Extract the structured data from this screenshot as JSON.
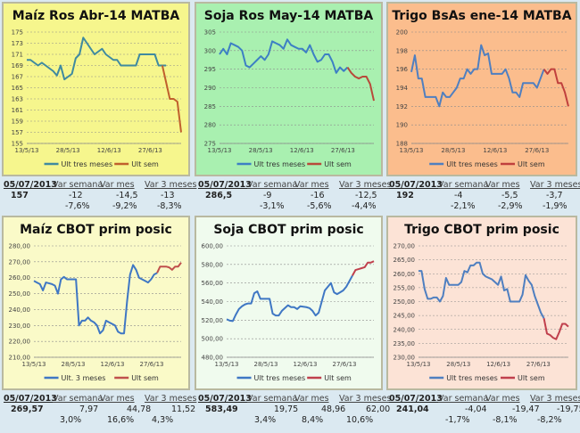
{
  "colors": {
    "page_bg": "#dbe9f1",
    "series_main": "#4a7fb5",
    "series_week": "#c0504d",
    "grid": "#9a9a9a"
  },
  "chart_data": [
    {
      "id": "maiz-ros",
      "type": "line",
      "title": "Maíz Ros Abr-14 MATBA",
      "bg": "#f6f68d",
      "main_color": "#3f8aa0",
      "week_color": "#c0602d",
      "ylim": [
        155,
        175
      ],
      "yticks": [
        155,
        157,
        159,
        161,
        163,
        165,
        167,
        169,
        171,
        173,
        175
      ],
      "ytick_labels": [
        "155",
        "157",
        "159",
        "161",
        "163",
        "165",
        "167",
        "169",
        "171",
        "173",
        "175"
      ],
      "xtick_labels": [
        "13/5/13",
        "28/5/13",
        "12/6/13",
        "27/6/13"
      ],
      "xtick_index": [
        0,
        11,
        22,
        33
      ],
      "n": 40,
      "legend": [
        "Ult tres meses",
        "Ult sem"
      ],
      "series_main": [
        170,
        170,
        169.5,
        169,
        169.5,
        169,
        168.5,
        168,
        167.2,
        169,
        166.5,
        167,
        167.5,
        170.3,
        171,
        174,
        173,
        172,
        171,
        171.5,
        172,
        171,
        170.5,
        170,
        170,
        169,
        169,
        169,
        169,
        169,
        171,
        171,
        171,
        171,
        171,
        169,
        169,
        169
      ],
      "series_week": [
        169,
        166,
        163,
        163,
        162.5,
        157
      ],
      "week_start": 36,
      "grid": true,
      "legend_position": "bottom"
    },
    {
      "id": "soja-ros",
      "type": "line",
      "title": "Soja Ros May-14 MATBA",
      "bg": "#a9f0b0",
      "main_color": "#3d7fc4",
      "week_color": "#b84a3a",
      "ylim": [
        275,
        305
      ],
      "yticks": [
        275,
        280,
        285,
        290,
        295,
        300,
        305
      ],
      "ytick_labels": [
        "275",
        "280",
        "285",
        "290",
        "295",
        "300",
        "305"
      ],
      "xtick_labels": [
        "13/5/13",
        "28/5/13",
        "12/6/13",
        "27/6/13"
      ],
      "xtick_index": [
        0,
        11,
        22,
        33
      ],
      "n": 40,
      "legend": [
        "Ult tres meses",
        "Ult sem"
      ],
      "series_main": [
        299,
        300.5,
        299,
        302,
        301.5,
        301,
        300,
        296,
        295.5,
        296.5,
        297.5,
        298.5,
        297.5,
        299,
        302.5,
        302,
        301.5,
        300.5,
        303,
        301.5,
        301,
        300.5,
        300.5,
        299.5,
        301.5,
        299,
        297,
        297.5,
        299,
        299,
        297,
        294,
        295.5,
        294.5,
        295.5
      ],
      "series_week": [
        295.5,
        294,
        293,
        292.5,
        293,
        293,
        291,
        286.5
      ],
      "week_start": 34,
      "grid": true,
      "legend_position": "bottom"
    },
    {
      "id": "trigo-bsas",
      "type": "line",
      "title": "Trigo BsAs ene-14 MATBA",
      "bg": "#fbbd8d",
      "main_color": "#4f7fc0",
      "week_color": "#c0403d",
      "ylim": [
        188,
        200
      ],
      "yticks": [
        188,
        190,
        192,
        194,
        196,
        198,
        200
      ],
      "ytick_labels": [
        "188",
        "190",
        "192",
        "194",
        "196",
        "198",
        "200"
      ],
      "xtick_labels": [
        "13/5/13",
        "28/5/13",
        "12/6/13",
        "27/6/13"
      ],
      "xtick_index": [
        0,
        11,
        22,
        33
      ],
      "n": 40,
      "legend": [
        "Ult tres meses",
        "Ult sem"
      ],
      "series_main": [
        195.7,
        197.5,
        195,
        195,
        193,
        193,
        193,
        193,
        192,
        193.5,
        193,
        193,
        193.5,
        194,
        195,
        195,
        196,
        195.5,
        196,
        196,
        198.6,
        197.5,
        197.7,
        195.5,
        195.5,
        195.5,
        195.5,
        196,
        195,
        193.5,
        193.5,
        193,
        194.5,
        194.5,
        194.5,
        194.5,
        194,
        195,
        196
      ],
      "series_week": [
        196,
        195.5,
        196,
        196,
        194.5,
        194.5,
        193.5,
        192
      ],
      "week_start": 38,
      "grid": true,
      "legend_position": "bottom"
    },
    {
      "id": "maiz-cbot",
      "type": "line",
      "title": "Maíz CBOT prim posic",
      "bg": "#fafac8",
      "main_color": "#3f77c4",
      "week_color": "#c0504d",
      "ylim": [
        210,
        280
      ],
      "yticks": [
        210,
        220,
        230,
        240,
        250,
        260,
        270,
        280
      ],
      "ytick_labels": [
        "210,00",
        "220,00",
        "230,00",
        "240,00",
        "250,00",
        "260,00",
        "270,00",
        "280,00"
      ],
      "xtick_labels": [
        "13/5/13",
        "28/5/13",
        "12/6/13",
        "27/6/13"
      ],
      "xtick_index": [
        0,
        11,
        22,
        33
      ],
      "n": 40,
      "legend": [
        "Ult. 3 meses",
        "Ult sem"
      ],
      "series_main": [
        258,
        257,
        256,
        252,
        257,
        256.5,
        256,
        255,
        250,
        259,
        260.5,
        259,
        259,
        259,
        259,
        230,
        233,
        233,
        235,
        233,
        232,
        230,
        225,
        227,
        233,
        232,
        231,
        230,
        226,
        225,
        225,
        245,
        262,
        268,
        265,
        260,
        259,
        258,
        257,
        259,
        262,
        263
      ],
      "series_week": [
        263,
        267,
        267,
        267,
        266.5,
        265,
        267,
        267,
        269.5
      ],
      "week_start": 41,
      "grid": true,
      "legend_position": "bottom"
    },
    {
      "id": "soja-cbot",
      "type": "line",
      "title": "Soja CBOT prim posic",
      "bg": "#f0fbee",
      "main_color": "#3f77c4",
      "week_color": "#c0404d",
      "ylim": [
        480,
        600
      ],
      "yticks": [
        480,
        500,
        520,
        540,
        560,
        580,
        600
      ],
      "ytick_labels": [
        "480,00",
        "500,00",
        "520,00",
        "540,00",
        "560,00",
        "580,00",
        "600,00"
      ],
      "xtick_labels": [
        "13/5/13",
        "28/5/13",
        "12/6/13",
        "27/6/13"
      ],
      "xtick_index": [
        0,
        11,
        22,
        33
      ],
      "n": 40,
      "legend": [
        "Ult tres meses",
        "Ult sem"
      ],
      "series_main": [
        521,
        519.5,
        519,
        526,
        532,
        535,
        537,
        538,
        538,
        549,
        551,
        543,
        543,
        543,
        543,
        527,
        525,
        525,
        530,
        533,
        536,
        534,
        534,
        532,
        535,
        534.5,
        534,
        533,
        530,
        525,
        528,
        540,
        552,
        556,
        560,
        550,
        548,
        550,
        552,
        556,
        562,
        568
      ],
      "series_week": [
        568,
        574,
        575,
        576,
        577,
        582,
        582,
        583.5
      ],
      "week_start": 41,
      "grid": true,
      "legend_position": "bottom"
    },
    {
      "id": "trigo-cbot",
      "type": "line",
      "title": "Trigo CBOT prim posic",
      "bg": "#fce3d6",
      "main_color": "#4f7fc0",
      "week_color": "#c0404d",
      "ylim": [
        230,
        270
      ],
      "yticks": [
        230,
        235,
        240,
        245,
        250,
        255,
        260,
        265,
        270
      ],
      "ytick_labels": [
        "230,00",
        "235,00",
        "240,00",
        "245,00",
        "250,00",
        "255,00",
        "260,00",
        "265,00",
        "270,00"
      ],
      "xtick_labels": [
        "13/5/13",
        "28/5/13",
        "12/6/13",
        "27/6/13"
      ],
      "xtick_index": [
        0,
        11,
        22,
        33
      ],
      "n": 40,
      "legend": [
        "Ult tres meses",
        "Ult sem"
      ],
      "series_main": [
        261,
        261,
        254.5,
        251,
        251,
        251.5,
        251.5,
        250,
        252,
        258.5,
        256,
        256,
        256,
        256,
        257,
        261,
        260.5,
        263,
        263,
        264,
        264,
        260,
        259,
        258.5,
        258,
        257,
        256,
        259,
        254,
        254.5,
        250,
        250,
        250,
        250,
        252.5,
        259.5,
        257.5,
        256,
        252,
        249,
        246,
        244
      ],
      "series_week": [
        244,
        238.5,
        238,
        237,
        236.5,
        239,
        242,
        242,
        241
      ],
      "week_start": 41,
      "grid": true,
      "legend_position": "bottom"
    }
  ],
  "stats": [
    {
      "date": "05/07/2013",
      "headers": [
        "Var semana",
        "Var mes",
        "Var 3 meses"
      ],
      "value": "157",
      "abs": [
        "-12",
        "-14,5",
        "-13"
      ],
      "pct": [
        "-7,6%",
        "-9,2%",
        "-8,3%"
      ]
    },
    {
      "date": "05/07/2013",
      "headers": [
        "Var semana",
        "Var mes",
        "Var 3 meses"
      ],
      "value": "286,5",
      "abs": [
        "-9",
        "-16",
        "-12,5"
      ],
      "pct": [
        "-3,1%",
        "-5,6%",
        "-4,4%"
      ]
    },
    {
      "date": "05/07/2013",
      "headers": [
        "Var semana",
        "Var mes",
        "Var 3 meses"
      ],
      "value": "192",
      "abs": [
        "-4",
        "-5,5",
        "-3,7"
      ],
      "pct": [
        "-2,1%",
        "-2,9%",
        "-1,9%"
      ]
    },
    {
      "date": "05/07/2013",
      "headers": [
        "Var semana",
        "Var mes",
        "Var 3 meses"
      ],
      "value": "269,57",
      "abs": [
        "7,97",
        "44,78",
        "11,52"
      ],
      "pct": [
        "3,0%",
        "16,6%",
        "4,3%"
      ]
    },
    {
      "date": "05/07/2013",
      "headers": [
        "Var semana",
        "Var mes",
        "Var 3 meses"
      ],
      "value": "583,49",
      "abs": [
        "19,75",
        "48,96",
        "62,00"
      ],
      "pct": [
        "3,4%",
        "8,4%",
        "10,6%"
      ]
    },
    {
      "date": "05/07/2013",
      "headers": [
        "Var semana",
        "Var mes",
        "Var 3 meses"
      ],
      "value": "241,04",
      "abs": [
        "-4,04",
        "-19,47",
        "-19,75"
      ],
      "pct": [
        "-1,7%",
        "-8,1%",
        "-8,2%"
      ]
    }
  ]
}
